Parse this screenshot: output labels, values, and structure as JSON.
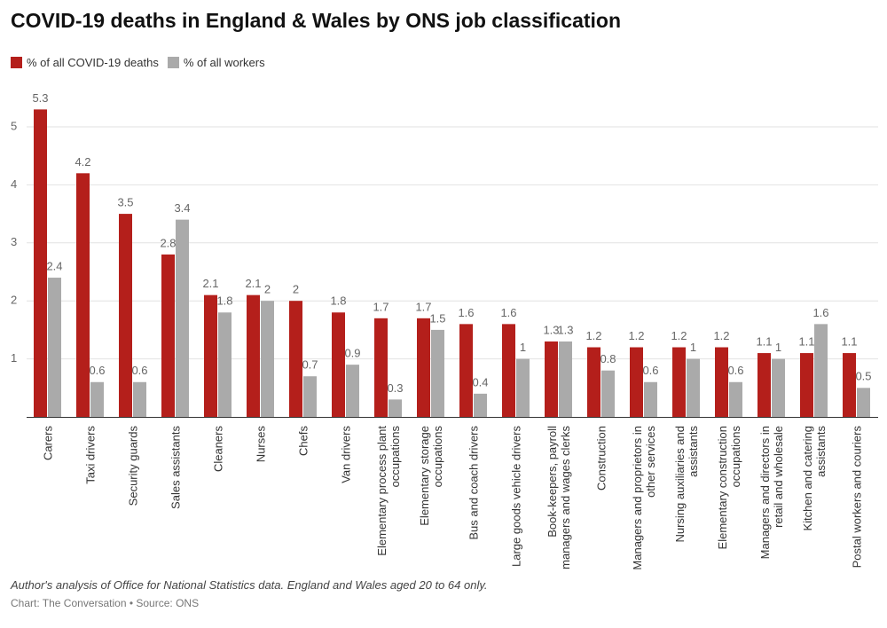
{
  "chart_data": {
    "type": "bar",
    "title": "COVID-19 deaths in England & Wales by ONS job classification",
    "categories": [
      "Carers",
      "Taxi drivers",
      "Security guards",
      "Sales assistants",
      "Cleaners",
      "Nurses",
      "Chefs",
      "Van drivers",
      "Elementary process plant occupations",
      "Elementary storage occupations",
      "Bus and coach drivers",
      "Large goods vehicle drivers",
      "Book-keepers, payroll managers and wages clerks",
      "Construction",
      "Managers and proprietors in other services",
      "Nursing auxiliaries and assistants",
      "Elementary construction occupations",
      "Managers and directors in retail and wholesale",
      "Kitchen and catering assistants",
      "Postal workers and couriers"
    ],
    "series": [
      {
        "name": "% of all COVID-19 deaths",
        "color": "#b41f1b",
        "values": [
          5.3,
          4.2,
          3.5,
          2.8,
          2.1,
          2.1,
          2,
          1.8,
          1.7,
          1.7,
          1.6,
          1.6,
          1.3,
          1.2,
          1.2,
          1.2,
          1.2,
          1.1,
          1.1,
          1.1
        ]
      },
      {
        "name": "% of all workers",
        "color": "#aaaaaa",
        "values": [
          2.4,
          0.6,
          0.6,
          3.4,
          1.8,
          2,
          0.7,
          0.9,
          0.3,
          1.5,
          0.4,
          1,
          1.3,
          0.8,
          0.6,
          1,
          0.6,
          1,
          1.6,
          0.5
        ]
      }
    ],
    "ylim": [
      0,
      5
    ],
    "yticks": [
      1,
      2,
      3,
      4,
      5
    ],
    "grid": true,
    "note": "Author's analysis of Office for National Statistics data. England and Wales aged 20 to 64 only.",
    "source": "Chart: The Conversation • Source: ONS"
  }
}
